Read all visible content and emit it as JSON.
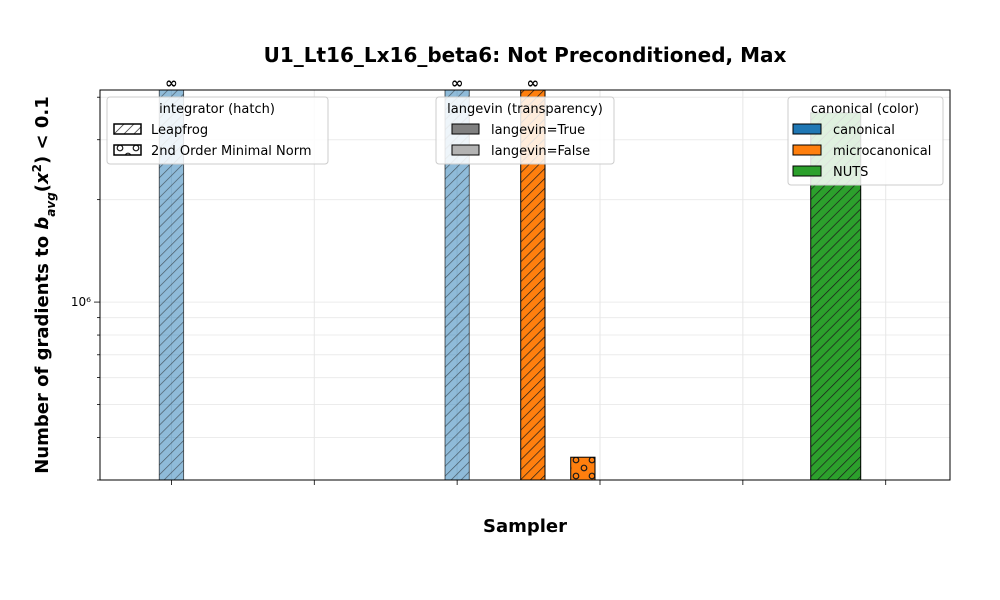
{
  "chart_data": {
    "type": "bar",
    "title": "U1_Lt16_Lx16_beta6: Not Preconditioned, Max",
    "xlabel": "Sampler",
    "ylabel": "Number of gradients to b_avg(x²) < 0.1",
    "yscale": "log",
    "ylim": [
      300000,
      4200000
    ],
    "ytick_labels": [
      {
        "value": 1000000,
        "label": "10⁶"
      }
    ],
    "grid": true,
    "x_ticks": [
      0,
      1,
      2,
      3,
      4,
      5
    ],
    "bars": [
      {
        "x": 0.0,
        "value": null,
        "infinite": true,
        "label": "∞",
        "color": "#1f77b4",
        "langevin": false,
        "hatch": "leapfrog"
      },
      {
        "x": 2.0,
        "value": null,
        "infinite": true,
        "label": "∞",
        "color": "#1f77b4",
        "langevin": false,
        "hatch": "leapfrog"
      },
      {
        "x": 2.53,
        "value": null,
        "infinite": true,
        "label": "∞",
        "color": "#ff7f0e",
        "langevin": true,
        "hatch": "leapfrog"
      },
      {
        "x": 2.88,
        "value": 350000,
        "infinite": false,
        "color": "#ff7f0e",
        "langevin": true,
        "hatch": "minimal_norm"
      },
      {
        "x": 4.65,
        "value": 3600000,
        "infinite": false,
        "color": "#2ca02c",
        "langevin": true,
        "hatch": "leapfrog"
      }
    ],
    "legends": [
      {
        "title": "integrator (hatch)",
        "placement": "top-left",
        "entries": [
          {
            "label": "Leapfrog",
            "hatch": "leapfrog"
          },
          {
            "label": "2nd Order Minimal Norm",
            "hatch": "minimal_norm"
          }
        ]
      },
      {
        "title": "langevin (transparency)",
        "placement": "top-center",
        "entries": [
          {
            "label": "langevin=True",
            "color": "#808080"
          },
          {
            "label": "langevin=False",
            "color": "#b3b3b3"
          }
        ]
      },
      {
        "title": "canonical (color)",
        "placement": "top-right",
        "entries": [
          {
            "label": "canonical",
            "color": "#1f77b4"
          },
          {
            "label": "microcanonical",
            "color": "#ff7f0e"
          },
          {
            "label": "NUTS",
            "color": "#2ca02c"
          }
        ]
      }
    ]
  }
}
